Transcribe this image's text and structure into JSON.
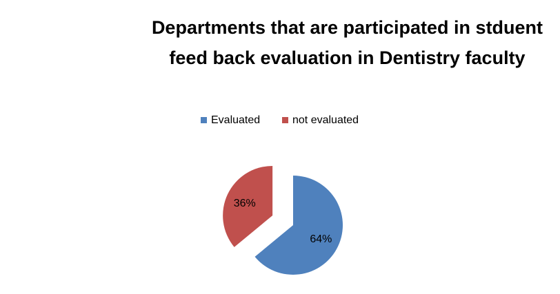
{
  "chart_data": {
    "type": "pie",
    "title": "Departments that are participated in stduent feed back evaluation in Dentistry faculty",
    "categories": [
      "Evaluated",
      "not evaluated"
    ],
    "values": [
      64,
      36
    ],
    "value_labels": [
      "64%",
      "36%"
    ],
    "colors": [
      "#4f81bd",
      "#c0504d"
    ],
    "legend": "top"
  }
}
